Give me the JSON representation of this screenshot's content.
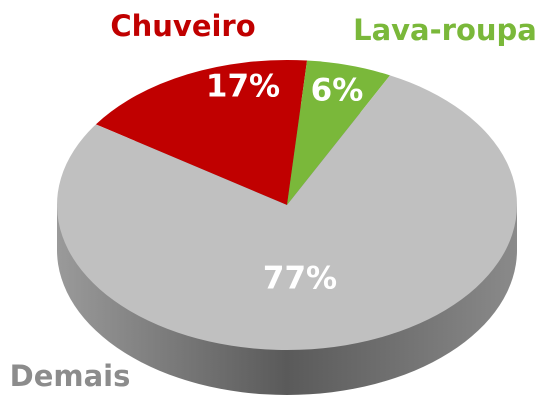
{
  "chart_data": {
    "type": "pie",
    "categories": [
      "Chuveiro",
      "Lava-roupa",
      "Demais"
    ],
    "values": [
      17,
      6,
      77
    ],
    "value_labels": [
      "17%",
      "6%",
      "77%"
    ],
    "colors": [
      "#c00000",
      "#7ab83a",
      "#c0c0c0"
    ]
  }
}
